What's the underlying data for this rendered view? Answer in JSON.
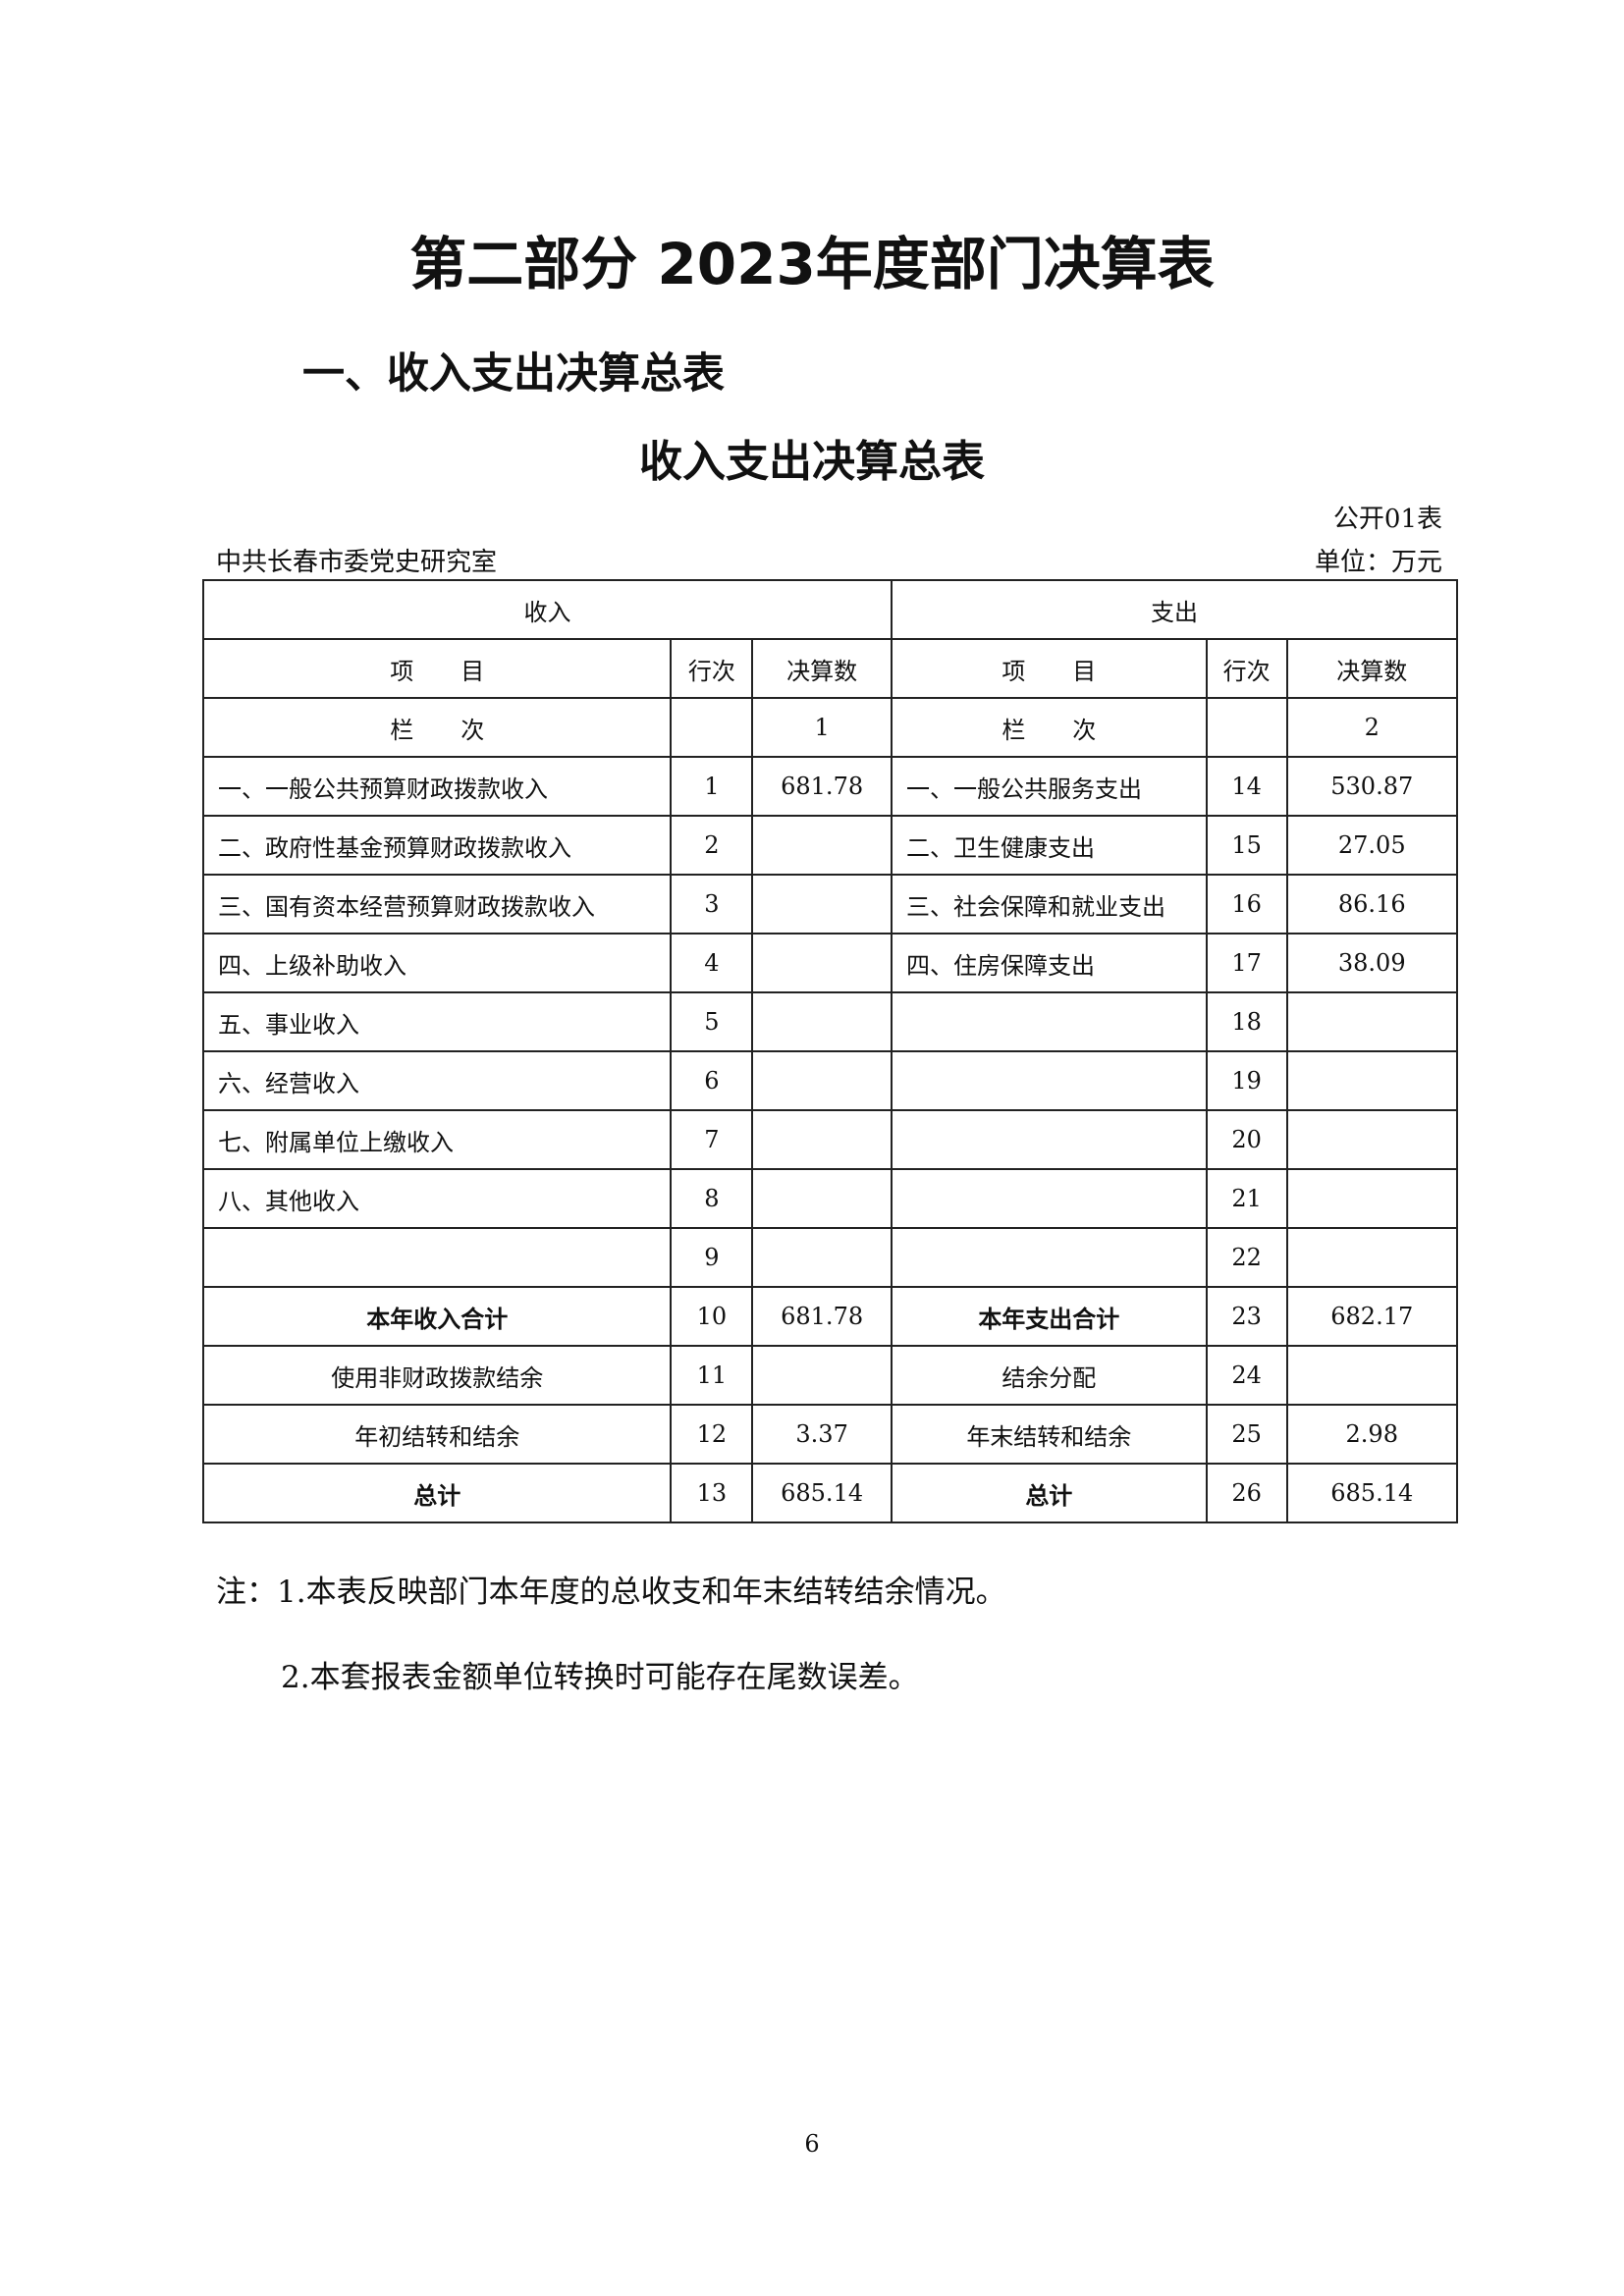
{
  "title": "第二部分 2023年度部门决算表",
  "section_heading": "一、收入支出决算总表",
  "table_title": "收入支出决算总表",
  "table_number": "公开01表",
  "organization": "中共长春市委党史研究室",
  "unit": "单位：万元",
  "table": {
    "income_header": "收入",
    "expense_header": "支出",
    "col_item": "项　　目",
    "col_line": "行次",
    "col_amount": "决算数",
    "col_row_label": "栏　　次",
    "income_col_no": "1",
    "expense_col_no": "2",
    "rows": [
      {
        "in_item": "一、一般公共预算财政拨款收入",
        "in_line": "1",
        "in_amount": "681.78",
        "out_item": "一、一般公共服务支出",
        "out_line": "14",
        "out_amount": "530.87"
      },
      {
        "in_item": "二、政府性基金预算财政拨款收入",
        "in_line": "2",
        "in_amount": "",
        "out_item": "二、卫生健康支出",
        "out_line": "15",
        "out_amount": "27.05"
      },
      {
        "in_item": "三、国有资本经营预算财政拨款收入",
        "in_line": "3",
        "in_amount": "",
        "out_item": "三、社会保障和就业支出",
        "out_line": "16",
        "out_amount": "86.16"
      },
      {
        "in_item": "四、上级补助收入",
        "in_line": "4",
        "in_amount": "",
        "out_item": "四、住房保障支出",
        "out_line": "17",
        "out_amount": "38.09"
      },
      {
        "in_item": "五、事业收入",
        "in_line": "5",
        "in_amount": "",
        "out_item": "",
        "out_line": "18",
        "out_amount": ""
      },
      {
        "in_item": "六、经营收入",
        "in_line": "6",
        "in_amount": "",
        "out_item": "",
        "out_line": "19",
        "out_amount": ""
      },
      {
        "in_item": "七、附属单位上缴收入",
        "in_line": "7",
        "in_amount": "",
        "out_item": "",
        "out_line": "20",
        "out_amount": ""
      },
      {
        "in_item": "八、其他收入",
        "in_line": "8",
        "in_amount": "",
        "out_item": "",
        "out_line": "21",
        "out_amount": ""
      },
      {
        "in_item": "",
        "in_line": "9",
        "in_amount": "",
        "out_item": "",
        "out_line": "22",
        "out_amount": ""
      },
      {
        "in_item": "本年收入合计",
        "in_line": "10",
        "in_amount": "681.78",
        "out_item": "本年支出合计",
        "out_line": "23",
        "out_amount": "682.17",
        "bold": true
      },
      {
        "in_item": "使用非财政拨款结余",
        "in_line": "11",
        "in_amount": "",
        "out_item": "结余分配",
        "out_line": "24",
        "out_amount": "",
        "center": true
      },
      {
        "in_item": "年初结转和结余",
        "in_line": "12",
        "in_amount": "3.37",
        "out_item": "年末结转和结余",
        "out_line": "25",
        "out_amount": "2.98",
        "center": true
      },
      {
        "in_item": "总计",
        "in_line": "13",
        "in_amount": "685.14",
        "out_item": "总计",
        "out_line": "26",
        "out_amount": "685.14",
        "bold": true
      }
    ]
  },
  "notes": [
    "注：1.本表反映部门本年度的总收支和年末结转结余情况。",
    "2.本套报表金额单位转换时可能存在尾数误差。"
  ],
  "page_number": "6"
}
